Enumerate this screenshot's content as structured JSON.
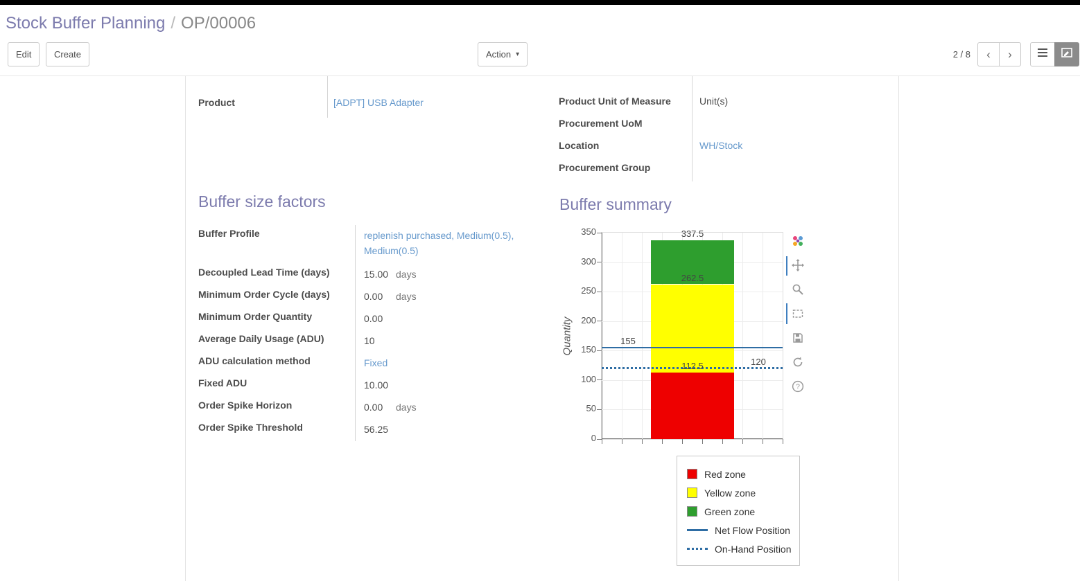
{
  "breadcrumb": {
    "parent": "Stock Buffer Planning",
    "separator": "/",
    "current": "OP/00006"
  },
  "toolbar": {
    "edit_label": "Edit",
    "create_label": "Create",
    "action_label": "Action",
    "pager": "2 / 8"
  },
  "icons": {
    "caret": "▾",
    "prev": "‹",
    "next": "›",
    "help": "?"
  },
  "sheet": {
    "fields_left": [
      {
        "label": "Product",
        "value": "[ADPT] USB Adapter"
      }
    ],
    "fields_right": [
      {
        "label": "Product Unit of Measure",
        "value": "Unit(s)"
      },
      {
        "label": "Procurement UoM",
        "value": ""
      },
      {
        "label": "Location",
        "value": "WH/Stock"
      },
      {
        "label": "Procurement Group",
        "value": ""
      }
    ],
    "factors": {
      "title": "Buffer size factors",
      "rows": [
        {
          "label": "Buffer Profile",
          "value": "replenish purchased, Medium(0.5), Medium(0.5)"
        },
        {
          "label": "Decoupled Lead Time (days)",
          "value": "15.00",
          "suffix": "days"
        },
        {
          "label": "Minimum Order Cycle (days)",
          "value": "0.00",
          "suffix": "days"
        },
        {
          "label": "Minimum Order Quantity",
          "value": "0.00"
        },
        {
          "label": "Average Daily Usage (ADU)",
          "value": "10"
        },
        {
          "label": "ADU calculation method",
          "value": "Fixed"
        },
        {
          "label": "Fixed ADU",
          "value": "10.00"
        },
        {
          "label": "Order Spike Horizon",
          "value": "0.00",
          "suffix": "days"
        },
        {
          "label": "Order Spike Threshold",
          "value": "56.25"
        }
      ]
    },
    "summary": {
      "title": "Buffer summary"
    }
  },
  "chart_data": {
    "type": "bar",
    "title": "",
    "ylabel": "Quantity",
    "ylim": [
      0,
      350
    ],
    "yticks": [
      0,
      50,
      100,
      150,
      200,
      250,
      300,
      350
    ],
    "grid": true,
    "zones": [
      {
        "name": "Red zone",
        "from": 0,
        "to": 112.5,
        "color": "#ee0000"
      },
      {
        "name": "Yellow zone",
        "from": 112.5,
        "to": 262.5,
        "color": "#ffff00"
      },
      {
        "name": "Green zone",
        "from": 262.5,
        "to": 337.5,
        "color": "#2e9e2e"
      }
    ],
    "lines": [
      {
        "name": "Net Flow Position",
        "value": 155,
        "style": "solid",
        "color": "#2e6da4"
      },
      {
        "name": "On-Hand Position",
        "value": 120,
        "style": "dotted",
        "color": "#2e6da4"
      }
    ],
    "annotations": [
      {
        "text": "337.5",
        "value": 337.5,
        "anchor": "bar"
      },
      {
        "text": "262.5",
        "value": 262.5,
        "anchor": "bar"
      },
      {
        "text": "155",
        "value": 155,
        "anchor": "left"
      },
      {
        "text": "112.5",
        "value": 112.5,
        "anchor": "bar"
      },
      {
        "text": "120",
        "value": 120,
        "anchor": "right"
      }
    ],
    "legend_position": "bottom-right"
  },
  "legend": {
    "items": [
      {
        "label": "Red zone"
      },
      {
        "label": "Yellow zone"
      },
      {
        "label": "Green zone"
      },
      {
        "label": "Net Flow Position"
      },
      {
        "label": "On-Hand Position"
      }
    ]
  },
  "colors": {
    "accent": "#7c7bad",
    "link": "#6699cc",
    "text": "#4c4c4c"
  }
}
